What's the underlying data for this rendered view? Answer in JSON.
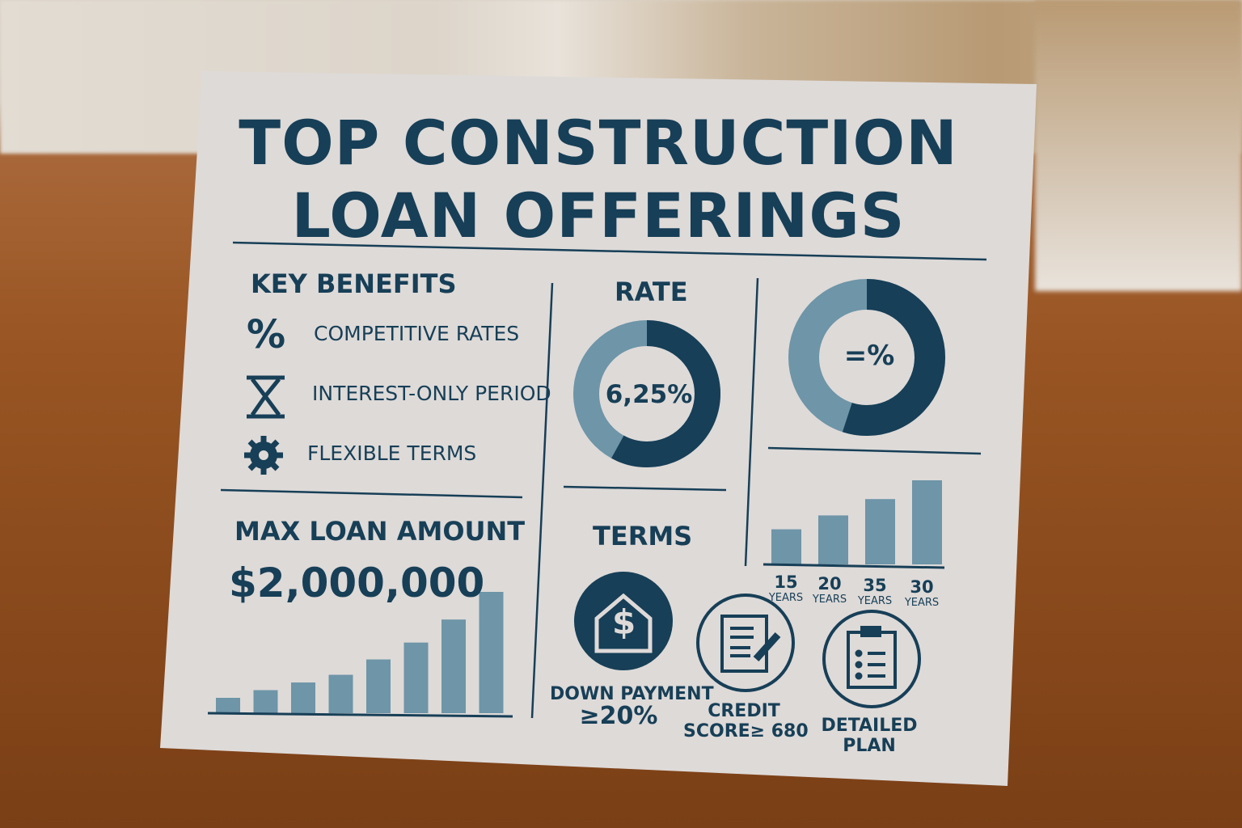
{
  "title": {
    "line1": "TOP CONSTRUCTION",
    "line2": "LOAN OFFERINGS"
  },
  "key_benefits": {
    "heading": "KEY BENEFITS",
    "items": [
      {
        "icon": "percent-icon",
        "label": "COMPETITIVE RATES"
      },
      {
        "icon": "hourglass-icon",
        "label": "INTEREST-ONLY PERIOD"
      },
      {
        "icon": "gear-icon",
        "label": "FLEXIBLE TERMS"
      }
    ]
  },
  "rate": {
    "heading": "RATE",
    "value": "6,25%",
    "fill_fraction": 0.58
  },
  "donut2": {
    "label": "=%",
    "fill_fraction": 0.55
  },
  "max_loan": {
    "heading": "MAX LOAN AMOUNT",
    "value": "$2,000,000",
    "bars": [
      1,
      1.5,
      2,
      2.5,
      3.5,
      4.6,
      6.1,
      7.9
    ]
  },
  "terms": {
    "heading": "TERMS",
    "items": [
      {
        "icon": "house-dollar-icon",
        "line1": "DOWN PAYMENT",
        "line2": "≥20%"
      },
      {
        "icon": "document-pen-icon",
        "line1": "CREDIT",
        "line2": "SCORE≥ 680"
      },
      {
        "icon": "clipboard-list-icon",
        "line1": "DETAILED",
        "line2": "PLAN"
      }
    ]
  },
  "chart_data": {
    "type": "bar",
    "categories": [
      "15",
      "20",
      "35",
      "30"
    ],
    "unit": "YEARS",
    "values": [
      4.3,
      6,
      8,
      10.3
    ]
  },
  "colors": {
    "dark": "#173f57",
    "light": "#6e95a8",
    "card": "#dcd8d6"
  }
}
